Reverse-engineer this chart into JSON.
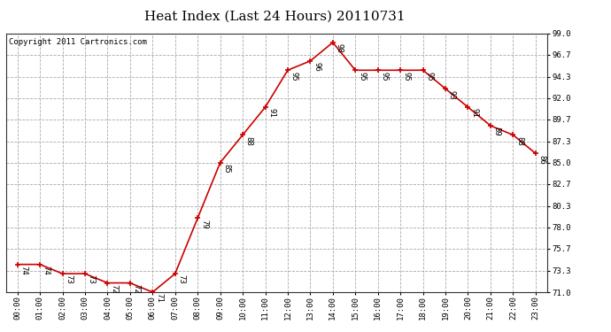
{
  "title": "Heat Index (Last 24 Hours) 20110731",
  "copyright": "Copyright 2011 Cartronics.com",
  "hours": [
    "00:00",
    "01:00",
    "02:00",
    "03:00",
    "04:00",
    "05:00",
    "06:00",
    "07:00",
    "08:00",
    "09:00",
    "10:00",
    "11:00",
    "12:00",
    "13:00",
    "14:00",
    "15:00",
    "16:00",
    "17:00",
    "18:00",
    "19:00",
    "20:00",
    "21:00",
    "22:00",
    "23:00"
  ],
  "values": [
    74,
    74,
    73,
    73,
    72,
    72,
    71,
    73,
    79,
    85,
    88,
    91,
    95,
    96,
    98,
    95,
    95,
    95,
    95,
    93,
    91,
    89,
    88,
    86
  ],
  "ylim": [
    71.0,
    99.0
  ],
  "yticks": [
    71.0,
    73.3,
    75.7,
    78.0,
    80.3,
    82.7,
    85.0,
    87.3,
    89.7,
    92.0,
    94.3,
    96.7,
    99.0
  ],
  "line_color": "#cc0000",
  "marker_color": "#cc0000",
  "bg_color": "#ffffff",
  "grid_color": "#aaaaaa",
  "title_fontsize": 11,
  "label_fontsize": 6.5,
  "tick_fontsize": 6.5,
  "copyright_fontsize": 6.5
}
